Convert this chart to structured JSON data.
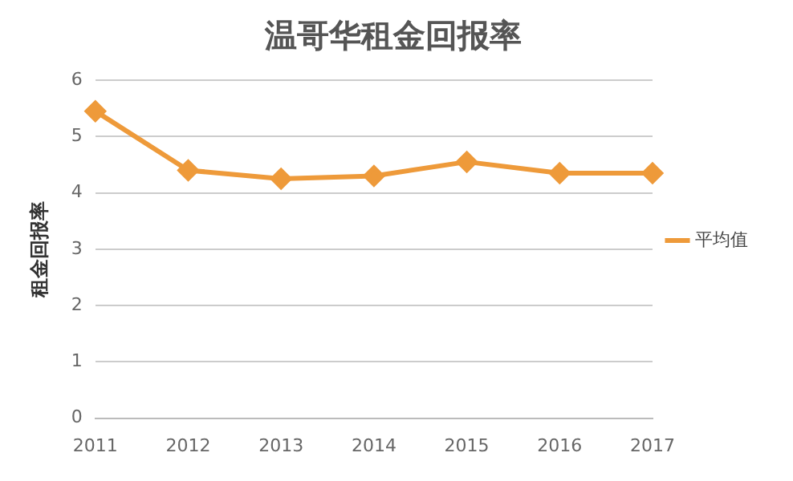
{
  "chart_data": {
    "type": "line",
    "title": "温哥华租金回报率",
    "ylabel": "租金回报率",
    "categories": [
      "2011",
      "2012",
      "2013",
      "2014",
      "2015",
      "2016",
      "2017"
    ],
    "series": [
      {
        "name": "平均值",
        "color": "#ee9a3a",
        "values": [
          5.45,
          4.4,
          4.25,
          4.3,
          4.55,
          4.35,
          4.35
        ]
      }
    ],
    "ylim": [
      0,
      6
    ],
    "yticks": [
      0,
      1,
      2,
      3,
      4,
      5,
      6
    ],
    "grid": "y",
    "legend": "right",
    "marker": "diamond",
    "line_style": "solid"
  }
}
